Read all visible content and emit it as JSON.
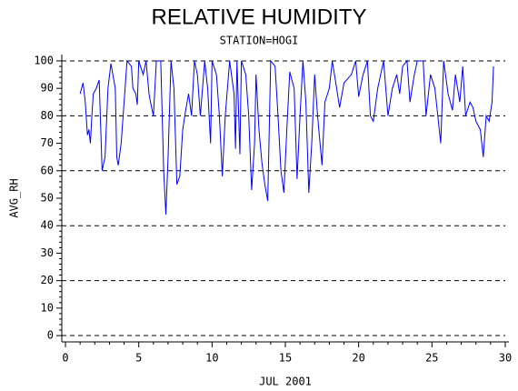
{
  "chart_data": {
    "type": "line",
    "title": "RELATIVE HUMIDITY",
    "subtitle": "STATION=HOGI",
    "x_label": "JUL 2001",
    "y_label": "AVG_RH",
    "xlim": [
      -0.25,
      30.25
    ],
    "ylim": [
      -2.3,
      102.3
    ],
    "xticks": [
      0,
      5,
      10,
      15,
      20,
      25,
      30
    ],
    "yticks": [
      0,
      10,
      20,
      30,
      40,
      50,
      60,
      70,
      80,
      90,
      100
    ],
    "grid_values": [
      0,
      20,
      40,
      60,
      80,
      100
    ],
    "grid": true,
    "series": [
      {
        "name": "AVG_RH",
        "color": "#0000ff",
        "x": [
          1.0,
          1.1,
          1.2,
          1.35,
          1.5,
          1.6,
          1.7,
          1.8,
          1.9,
          2.1,
          2.3,
          2.5,
          2.7,
          2.9,
          3.1,
          3.4,
          3.5,
          3.6,
          3.8,
          4.0,
          4.2,
          4.5,
          4.6,
          4.8,
          4.9,
          5.0,
          5.3,
          5.5,
          5.7,
          5.8,
          6.0,
          6.2,
          6.5,
          6.7,
          6.85,
          7.0,
          7.2,
          7.4,
          7.6,
          7.8,
          8.0,
          8.2,
          8.4,
          8.6,
          8.8,
          9.0,
          9.2,
          9.5,
          9.7,
          9.9,
          10.0,
          10.3,
          10.5,
          10.7,
          10.9,
          11.2,
          11.5,
          11.6,
          11.7,
          11.9,
          12.0,
          12.3,
          12.5,
          12.7,
          12.9,
          13.0,
          13.2,
          13.4,
          13.6,
          13.8,
          14.0,
          14.3,
          14.5,
          14.7,
          14.9,
          15.1,
          15.3,
          15.6,
          15.8,
          16.0,
          16.2,
          16.4,
          16.6,
          16.8,
          17.0,
          17.2,
          17.5,
          17.7,
          18.0,
          18.2,
          18.5,
          18.7,
          19.0,
          19.5,
          19.8,
          20.0,
          20.3,
          20.6,
          20.8,
          21.0,
          21.3,
          21.7,
          22.0,
          22.3,
          22.6,
          22.8,
          23.0,
          23.3,
          23.5,
          23.8,
          24.0,
          24.4,
          24.6,
          24.9,
          25.2,
          25.4,
          25.6,
          25.8,
          26.1,
          26.4,
          26.6,
          26.9,
          27.1,
          27.3,
          27.6,
          27.8,
          28.0,
          28.3,
          28.5,
          28.7,
          28.9,
          29.1,
          29.2
        ],
        "values": [
          88,
          90,
          92,
          85,
          73,
          75,
          70,
          80,
          88,
          90,
          93,
          60,
          65,
          90,
          99,
          90,
          65,
          62,
          70,
          85,
          100,
          98,
          90,
          88,
          84,
          100,
          95,
          100,
          88,
          85,
          80,
          100,
          100,
          60,
          44,
          65,
          100,
          90,
          55,
          58,
          75,
          82,
          88,
          80,
          100,
          95,
          80,
          100,
          90,
          70,
          100,
          95,
          80,
          58,
          80,
          100,
          88,
          68,
          100,
          66,
          100,
          95,
          80,
          53,
          70,
          95,
          75,
          63,
          55,
          49,
          100,
          98,
          80,
          60,
          52,
          75,
          96,
          90,
          57,
          80,
          100,
          85,
          52,
          70,
          95,
          80,
          62,
          85,
          90,
          100,
          90,
          83,
          92,
          95,
          100,
          87,
          95,
          100,
          80,
          78,
          90,
          100,
          80,
          90,
          95,
          88,
          98,
          100,
          85,
          95,
          100,
          100,
          80,
          95,
          90,
          80,
          70,
          100,
          88,
          82,
          95,
          85,
          98,
          80,
          85,
          83,
          78,
          75,
          65,
          80,
          78,
          85,
          98
        ]
      }
    ]
  }
}
